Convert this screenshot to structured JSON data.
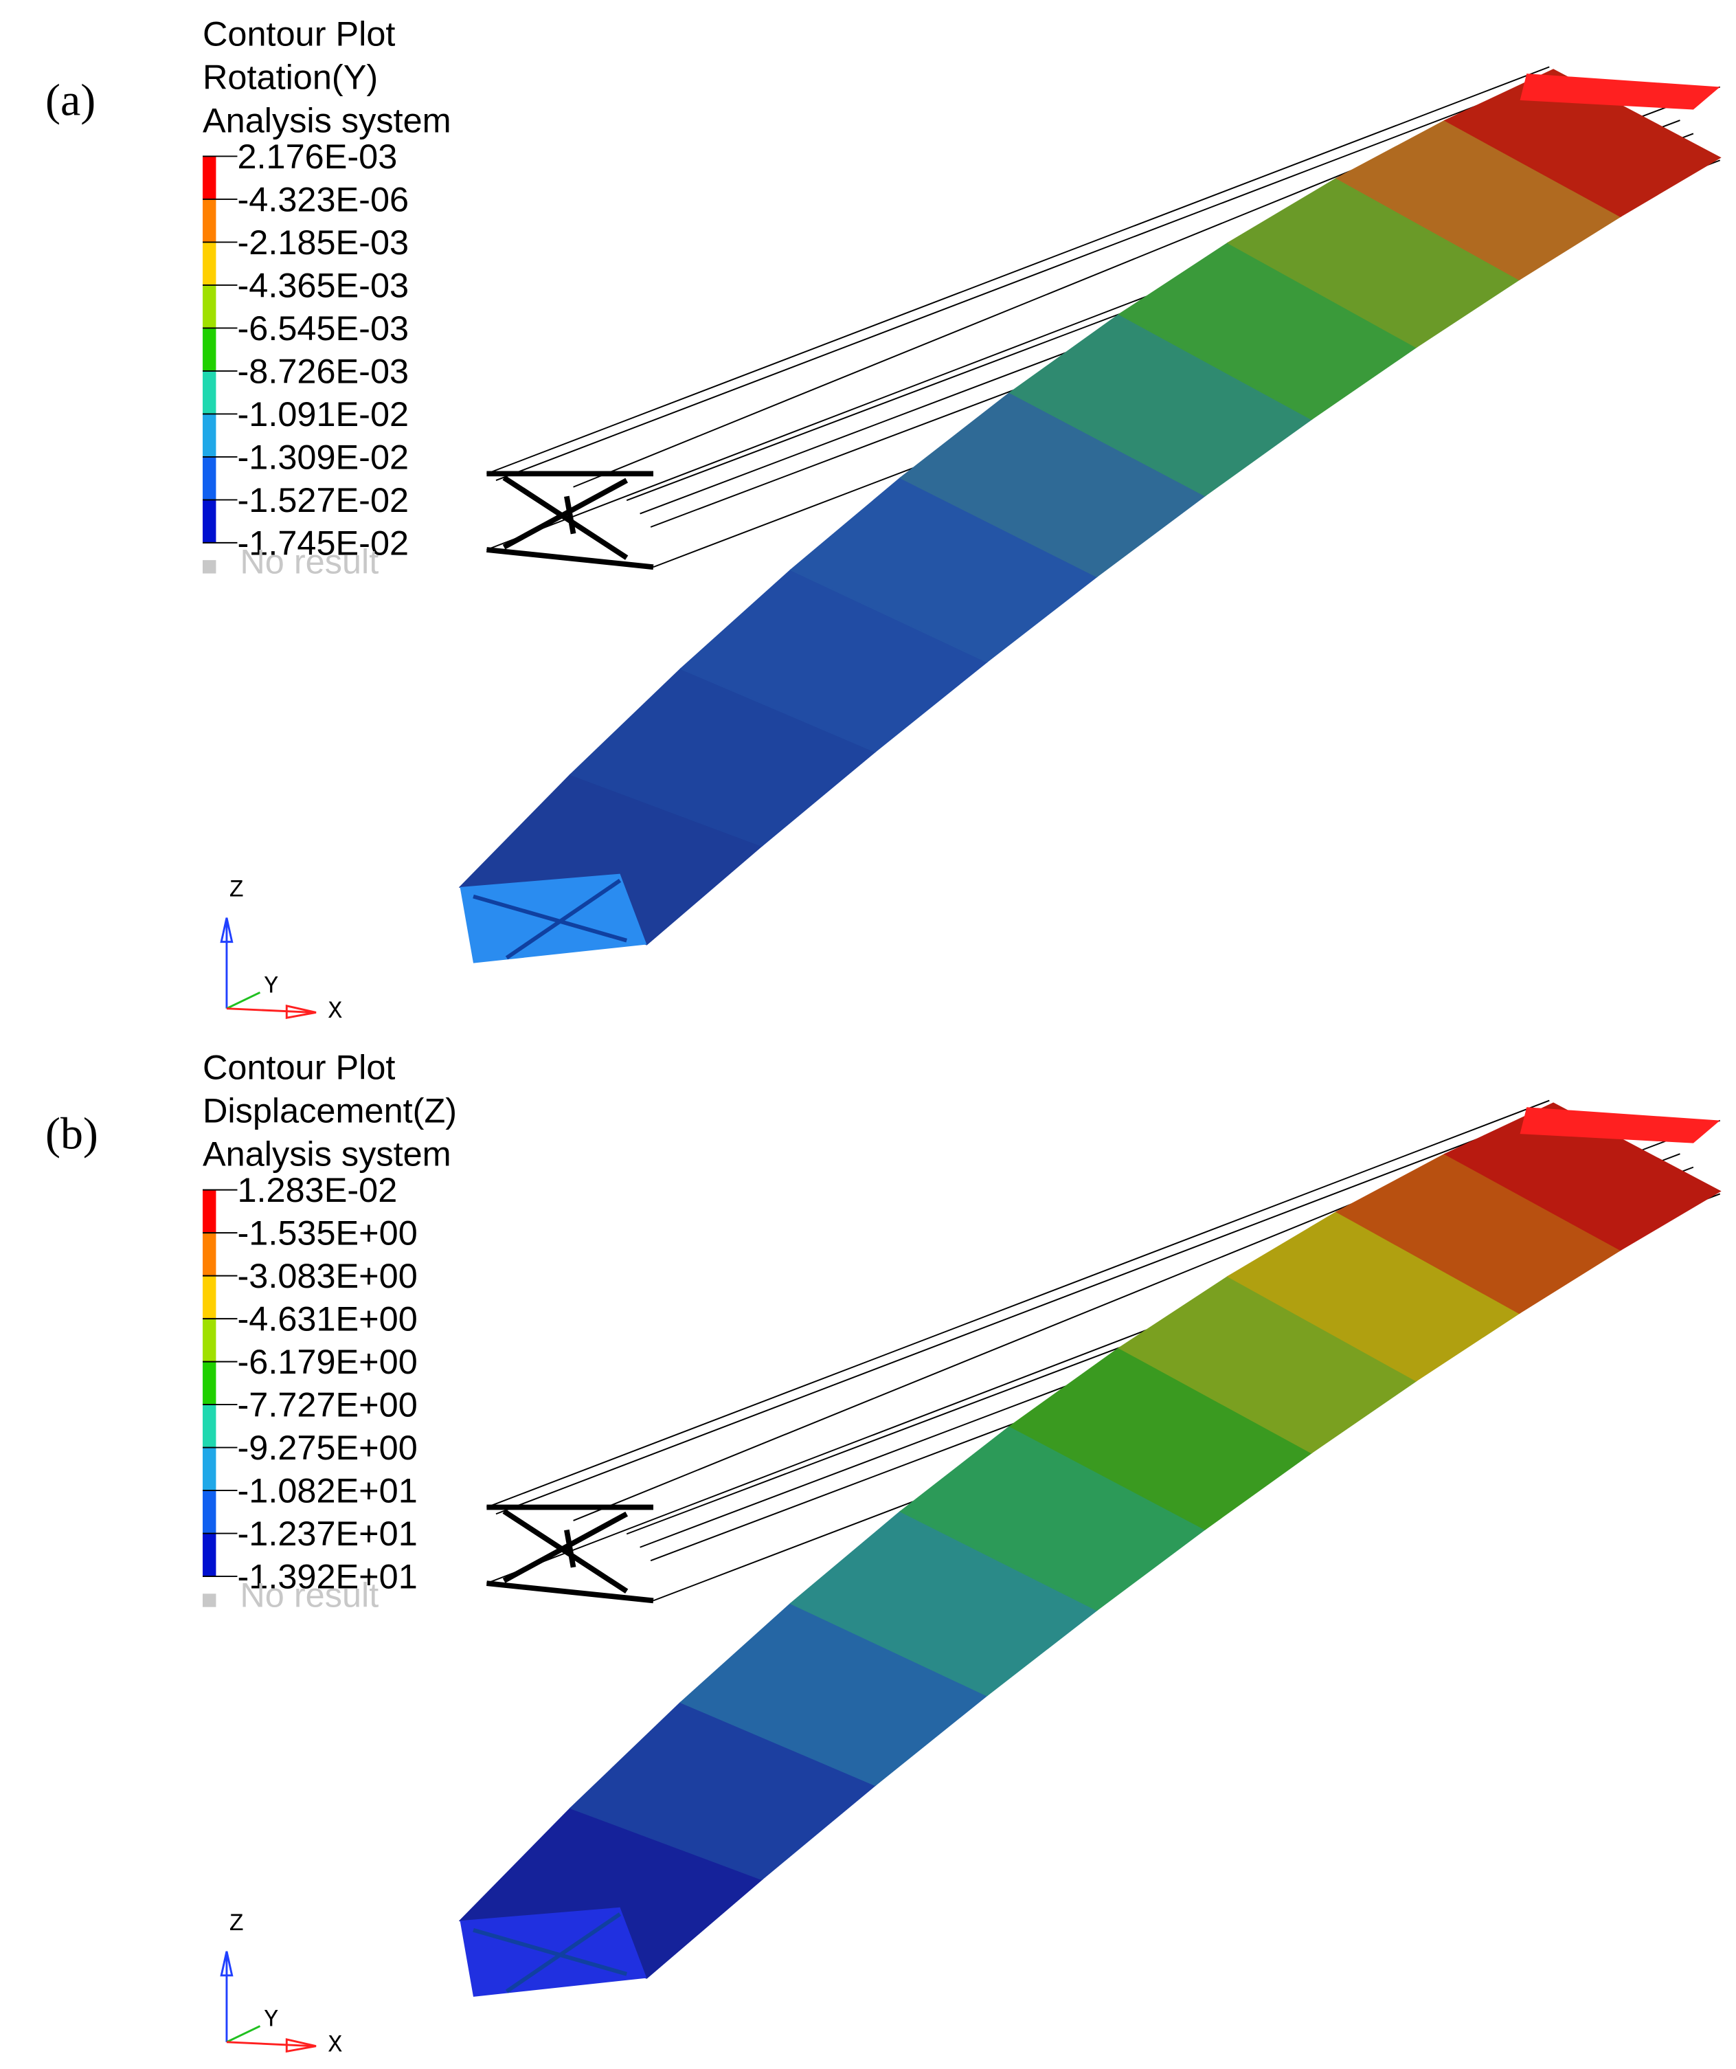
{
  "panels": [
    {
      "label": "(a)",
      "legend": {
        "title": [
          "Contour Plot",
          "Rotation(Y)",
          "Analysis system"
        ],
        "levels": [
          "2.176E-03",
          "-4.323E-06",
          "-2.185E-03",
          "-4.365E-03",
          "-6.545E-03",
          "-8.726E-03",
          "-1.091E-02",
          "-1.309E-02",
          "-1.527E-02",
          "-1.745E-02"
        ],
        "no_result": "No result"
      },
      "axes": {
        "z": "Z",
        "y": "Y",
        "x": "X"
      }
    },
    {
      "label": "(b)",
      "legend": {
        "title": [
          "Contour Plot",
          "Displacement(Z)",
          "Analysis system"
        ],
        "levels": [
          "1.283E-02",
          "-1.535E+00",
          "-3.083E+00",
          "-4.631E+00",
          "-6.179E+00",
          "-7.727E+00",
          "-9.275E+00",
          "-1.082E+01",
          "-1.237E+01",
          "-1.392E+01"
        ],
        "no_result": "No result"
      },
      "axes": {
        "z": "Z",
        "y": "Y",
        "x": "X"
      }
    }
  ]
}
